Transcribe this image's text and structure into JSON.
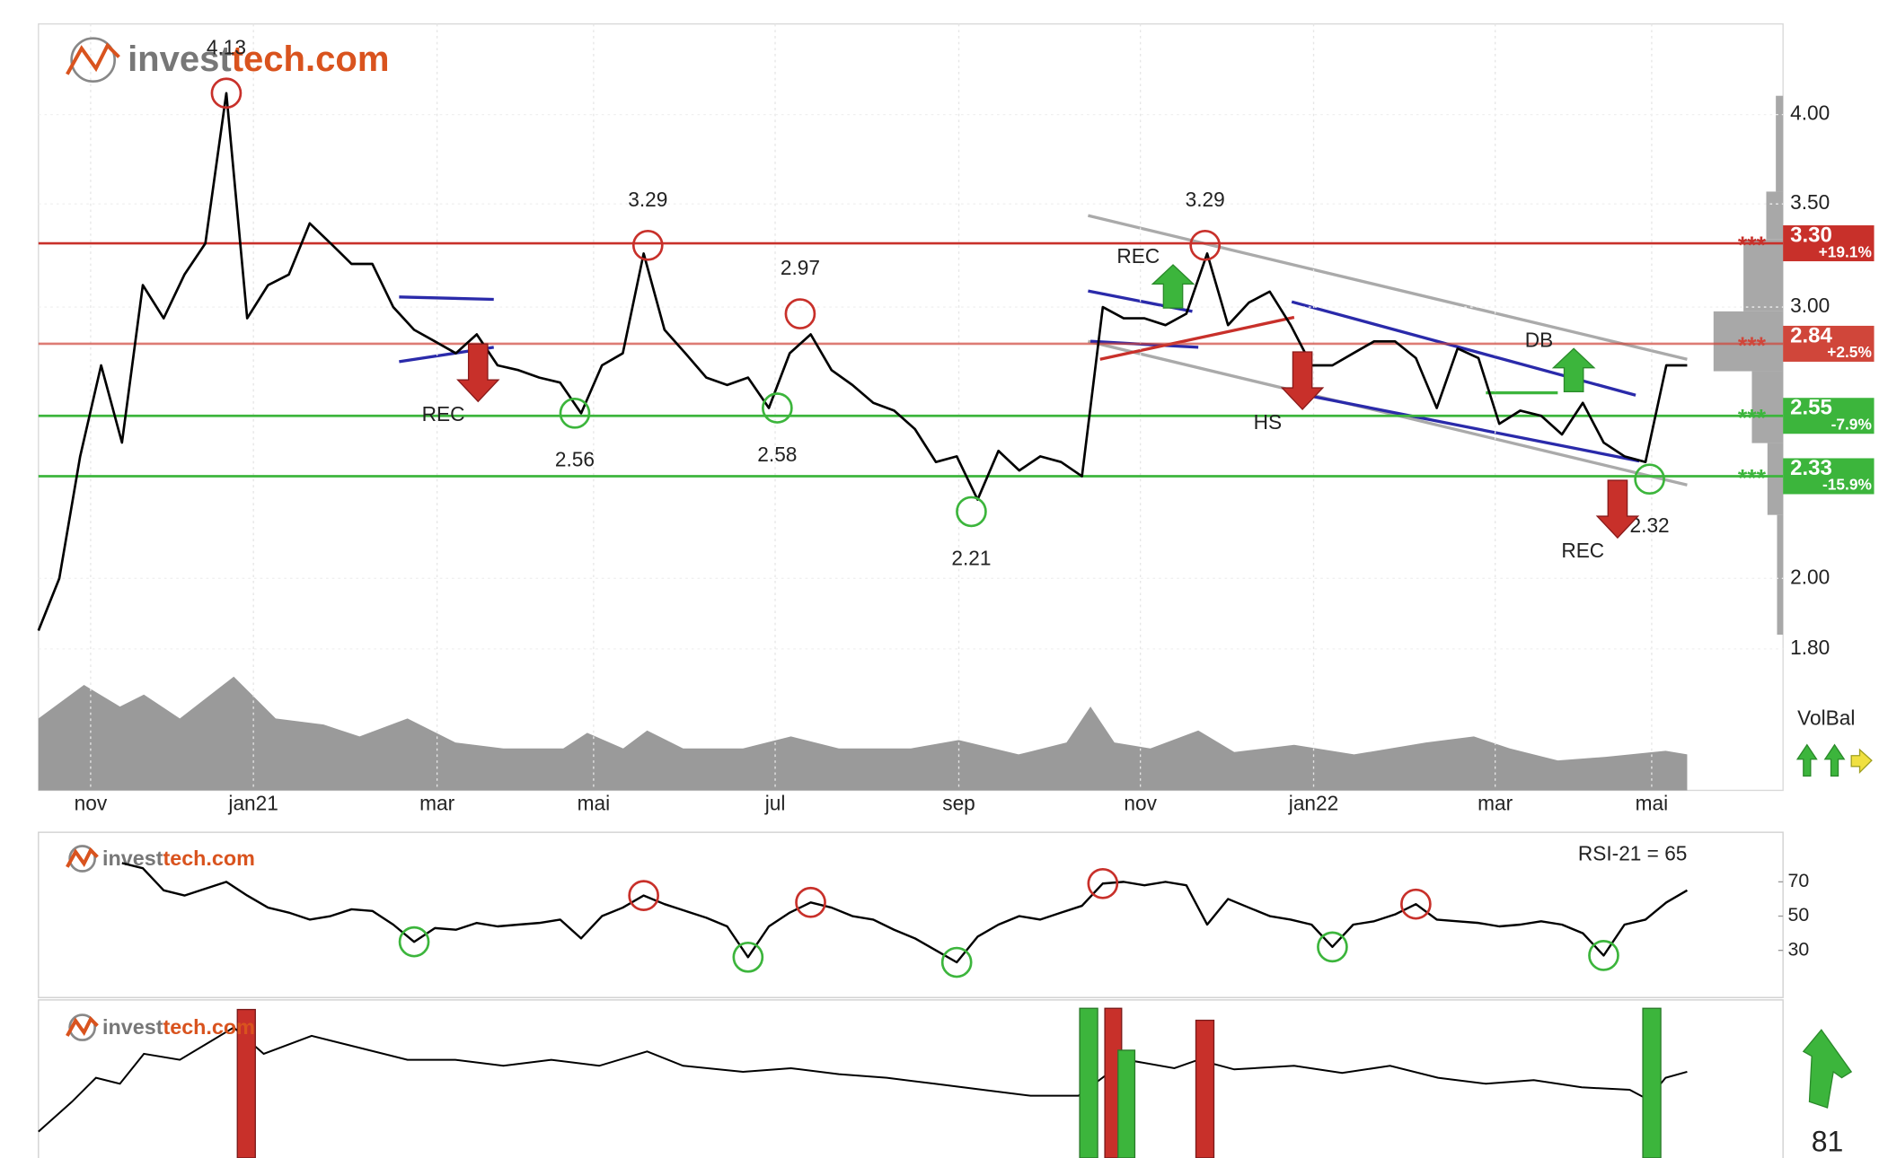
{
  "logo": [
    "invest",
    "tech.com"
  ],
  "score": 81,
  "chart_data": [
    {
      "type": "line",
      "color": "#000000",
      "log_scale": true,
      "grid": true,
      "xlim": [
        0,
        79
      ],
      "ylim": [
        1.79,
        4.58
      ],
      "yticks": [
        {
          "value": 4,
          "label": "4.00"
        },
        {
          "value": 3.5,
          "label": "3.50"
        },
        {
          "value": 3,
          "label": "3.00"
        },
        {
          "value": 2,
          "label": "2.00"
        },
        {
          "value": 1.8,
          "label": "1.80"
        }
      ],
      "xticks": [
        {
          "value": 2.5,
          "label": "nov"
        },
        {
          "value": 10.3,
          "label": "jan21"
        },
        {
          "value": 19.1,
          "label": "mar"
        },
        {
          "value": 26.6,
          "label": "mai"
        },
        {
          "value": 35.3,
          "label": "jul"
        },
        {
          "value": 44.1,
          "label": "sep"
        },
        {
          "value": 52.8,
          "label": "nov"
        },
        {
          "value": 61.1,
          "label": "jan22"
        },
        {
          "value": 69.8,
          "label": "mar"
        },
        {
          "value": 77.3,
          "label": "mai"
        }
      ],
      "values": [
        1.85,
        2.0,
        2.4,
        2.75,
        2.45,
        3.1,
        2.95,
        3.15,
        3.3,
        4.13,
        2.95,
        3.1,
        3.15,
        3.4,
        3.3,
        3.2,
        3.2,
        3.0,
        2.9,
        2.85,
        2.8,
        2.88,
        2.75,
        2.73,
        2.7,
        2.68,
        2.56,
        2.75,
        2.8,
        3.25,
        2.9,
        2.8,
        2.7,
        2.67,
        2.7,
        2.58,
        2.8,
        2.88,
        2.73,
        2.67,
        2.6,
        2.57,
        2.5,
        2.38,
        2.4,
        2.25,
        2.42,
        2.35,
        2.4,
        2.38,
        2.33,
        3.0,
        2.95,
        2.95,
        2.92,
        2.97,
        3.25,
        2.92,
        3.02,
        3.07,
        2.92,
        2.75,
        2.75,
        2.8,
        2.85,
        2.85,
        2.78,
        2.58,
        2.82,
        2.78,
        2.52,
        2.57,
        2.55,
        2.48,
        2.6,
        2.45,
        2.4,
        2.38,
        2.75,
        2.75
      ],
      "marker": "***",
      "levels": [
        {
          "value": 3.3,
          "label": "3.30",
          "change": "+19.1%",
          "color": "#c8302a"
        },
        {
          "value": 2.84,
          "change": "+2.5%",
          "color": "#d0463a"
        },
        {
          "value": 2.55,
          "change": "-7.9%",
          "color": "#3cb53c"
        },
        {
          "value": 2.33,
          "change": "-15.9%",
          "color": "#3cb53c"
        }
      ],
      "annotations": [
        {
          "x": 9,
          "value": 4.13,
          "kind": "top"
        },
        {
          "x": 29.2,
          "value": 3.29,
          "kind": "top"
        },
        {
          "x": 36.5,
          "value": 2.97,
          "kind": "top"
        },
        {
          "x": 25.7,
          "value": 2.56,
          "kind": "bottom"
        },
        {
          "x": 35.4,
          "value": 2.58,
          "kind": "bottom"
        },
        {
          "x": 44.7,
          "value": 2.21,
          "kind": "bottom"
        },
        {
          "x": 55.9,
          "value": 3.29,
          "kind": "top"
        },
        {
          "x": 77.2,
          "value": 2.32,
          "kind": "bottom"
        }
      ],
      "patterns": [
        {
          "label": "REC",
          "x": 19.4,
          "y": 2.55,
          "direction": "down"
        },
        {
          "label": "REC",
          "x": 52.7,
          "y": 3.23,
          "direction": "up"
        },
        {
          "label": "HS",
          "x": 58.9,
          "y": 2.52,
          "direction": "down"
        },
        {
          "label": "DB",
          "x": 71.9,
          "y": 2.85,
          "direction": "up"
        },
        {
          "label": "REC",
          "x": 74.0,
          "y": 2.08,
          "direction": "down"
        }
      ],
      "volume_label": "VolBal"
    },
    {
      "type": "line",
      "color": "#000000",
      "title": "RSI-21 = 65",
      "xlim": [
        0,
        79
      ],
      "ylim": [
        0,
        100
      ],
      "yticks": [
        70,
        50,
        30
      ],
      "values": [
        null,
        null,
        null,
        null,
        81,
        78,
        65,
        62,
        66,
        70,
        62,
        55,
        52,
        48,
        50,
        54,
        53,
        45,
        35,
        43,
        42,
        46,
        44,
        45,
        46,
        48,
        37,
        50,
        55,
        62,
        57,
        53,
        49,
        44,
        26,
        44,
        52,
        58,
        55,
        50,
        48,
        42,
        37,
        30,
        23,
        38,
        45,
        50,
        48,
        52,
        56,
        69,
        70,
        68,
        70,
        68,
        45,
        60,
        55,
        50,
        48,
        45,
        32,
        45,
        47,
        51,
        57,
        48,
        47,
        46,
        44,
        45,
        47,
        45,
        40,
        27,
        45,
        48,
        58,
        65
      ],
      "extremes": [
        {
          "x": 29,
          "kind": "high"
        },
        {
          "x": 37,
          "kind": "high"
        },
        {
          "x": 51,
          "kind": "high"
        },
        {
          "x": 66,
          "kind": "high"
        },
        {
          "x": 18,
          "kind": "low"
        },
        {
          "x": 34,
          "kind": "low"
        },
        {
          "x": 44,
          "kind": "low"
        },
        {
          "x": 62,
          "kind": "low"
        },
        {
          "x": 75,
          "kind": "low"
        }
      ]
    }
  ]
}
